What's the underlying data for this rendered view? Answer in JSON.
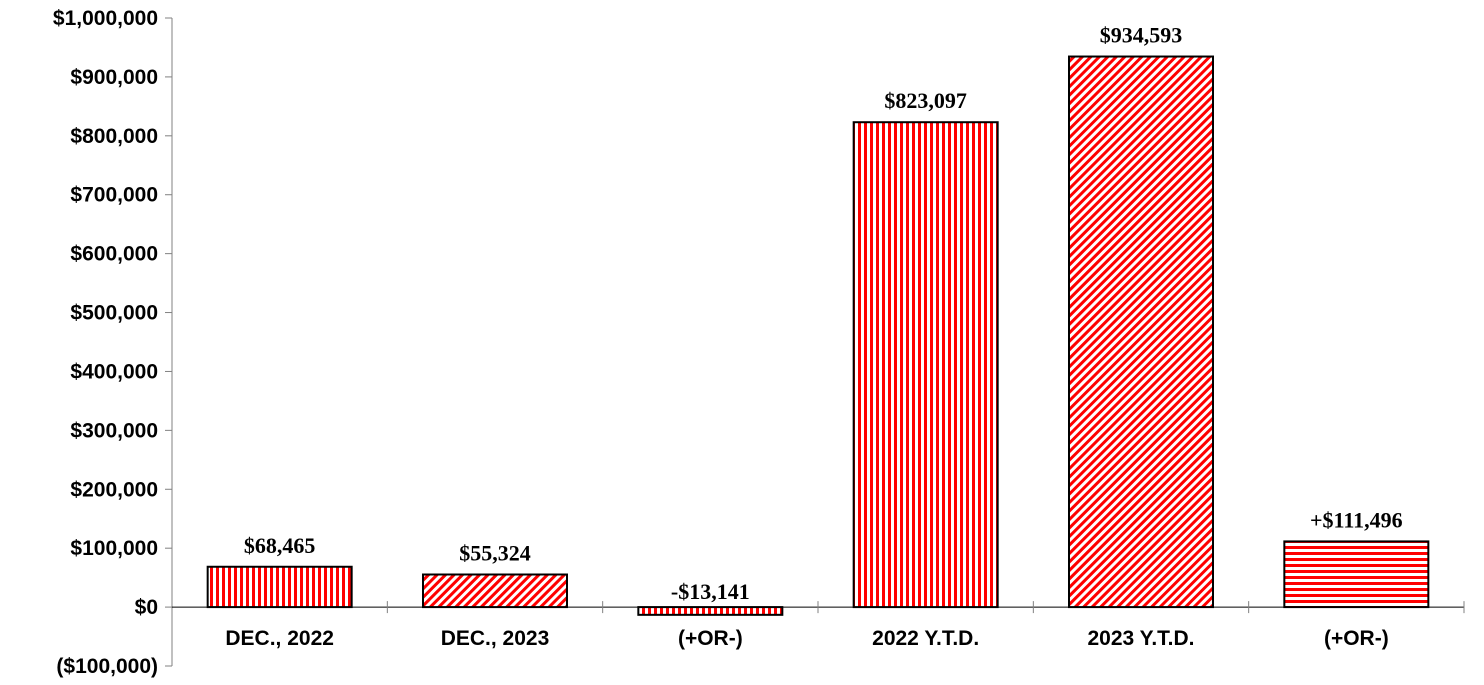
{
  "chart_data": {
    "type": "bar",
    "categories": [
      "DEC., 2022",
      "DEC., 2023",
      "(+OR-)",
      "2022 Y.T.D.",
      "2023 Y.T.D.",
      "(+OR-)"
    ],
    "values": [
      68465,
      55324,
      -13141,
      823097,
      934593,
      111496
    ],
    "data_labels": [
      "$68,465",
      "$55,324",
      "-$13,141",
      "$823,097",
      "$934,593",
      "+$111,496"
    ],
    "patterns": [
      "vertical-stripes",
      "diagonal-stripes",
      "vertical-stripes",
      "vertical-stripes",
      "diagonal-stripes",
      "horizontal-stripes"
    ],
    "ylim": [
      -100000,
      1000000
    ],
    "yticks": [
      -100000,
      0,
      100000,
      200000,
      300000,
      400000,
      500000,
      600000,
      700000,
      800000,
      900000,
      1000000
    ],
    "ytick_labels": [
      "($100,000)",
      "$0",
      "$100,000",
      "$200,000",
      "$300,000",
      "$400,000",
      "$500,000",
      "$600,000",
      "$700,000",
      "$800,000",
      "$900,000",
      "$1,000,000"
    ],
    "title": "",
    "xlabel": "",
    "ylabel": "",
    "grid": false,
    "colors": {
      "bar": "#ff0000",
      "stripe_bg": "#ffffff",
      "outline": "#000000",
      "axis": "#808080"
    }
  }
}
